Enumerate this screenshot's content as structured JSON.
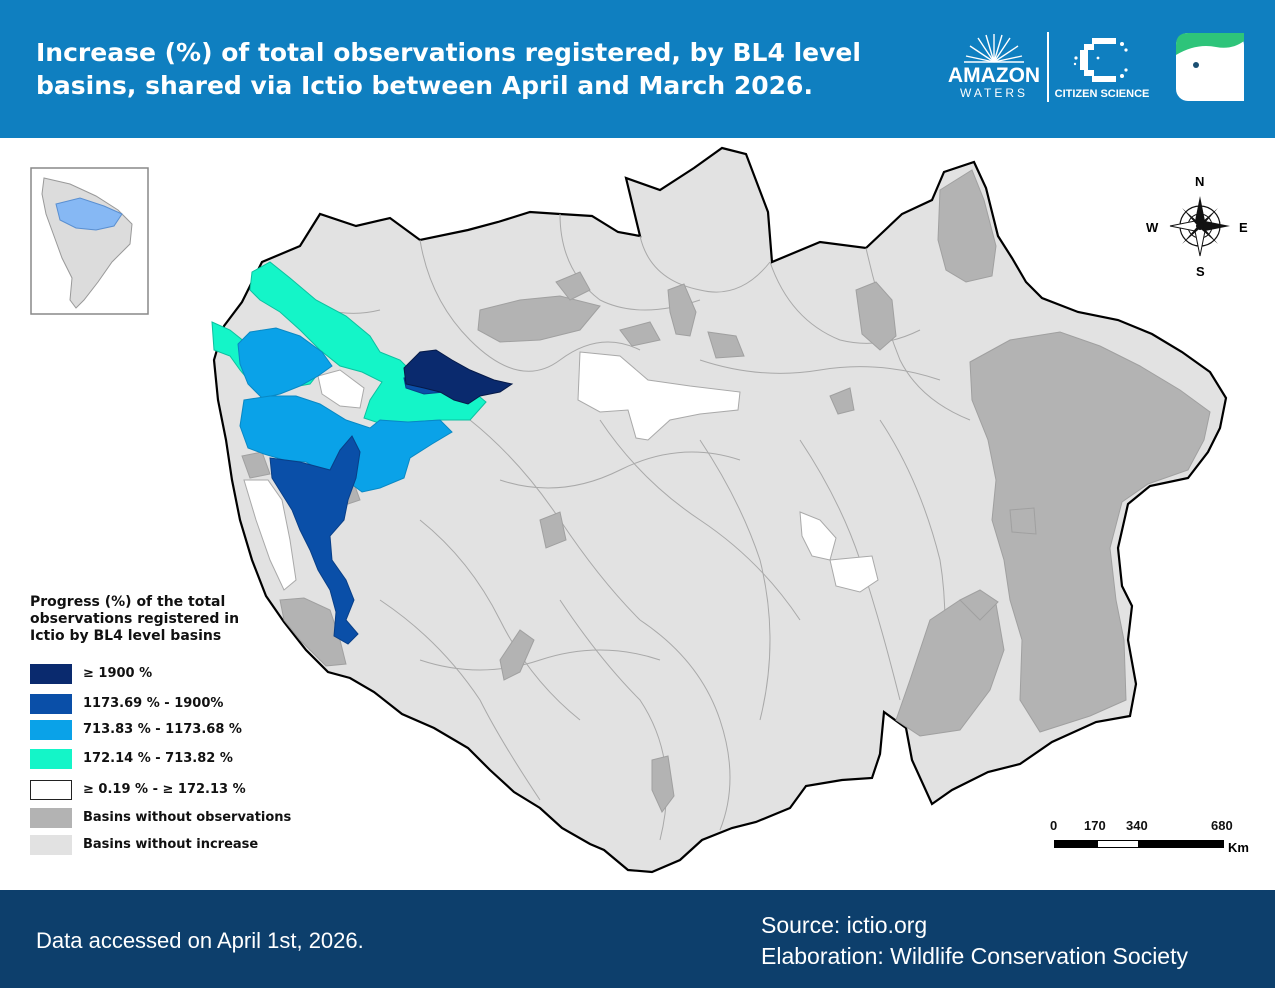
{
  "header": {
    "title": "Increase (%) of total observations registered, by BL4 level basins, shared via Ictio between April and March 2026."
  },
  "logos": {
    "amazon_waters_line1": "AMAZON",
    "amazon_waters_line2": "WATERS",
    "citizen_science": "CITIZEN SCIENCE"
  },
  "compass": {
    "n": "N",
    "s": "S",
    "e": "E",
    "w": "W"
  },
  "legend": {
    "title": "Progress (%) of the total observations registered in Ictio by BL4 level basins",
    "items": [
      {
        "label": "≥ 1900 %",
        "color": "#0a2a6e"
      },
      {
        "label": "1173.69 % - 1900%",
        "color": "#0a4fa8"
      },
      {
        "label": "713.83 % - 1173.68 %",
        "color": "#0aa2e8"
      },
      {
        "label": "172.14 % - 713.82 %",
        "color": "#14f5c8"
      },
      {
        "label": "≥ 0.19 % - ≥ 172.13 %",
        "color": "#ffffff"
      },
      {
        "label": "Basins without observations",
        "color": "#b3b3b3"
      },
      {
        "label": "Basins without increase",
        "color": "#e2e2e2"
      }
    ]
  },
  "scale": {
    "ticks": [
      "0",
      "170",
      "340",
      "680"
    ],
    "unit": "Km"
  },
  "footer": {
    "accessed": "Data accessed on April 1st, 2026.",
    "source": "Source: ictio.org",
    "elaboration": "Elaboration: Wildlife Conservation Society"
  }
}
